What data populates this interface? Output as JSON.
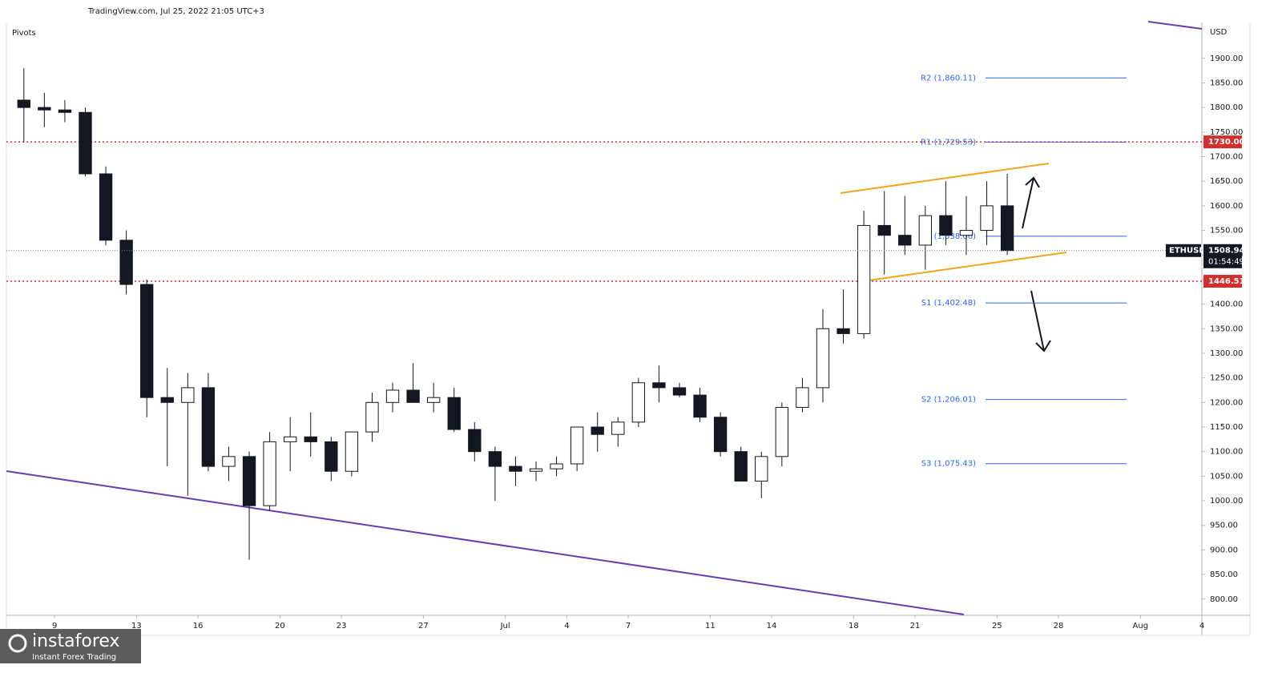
{
  "chart_data": {
    "type": "candlestick",
    "header": "TradingView.com, Jul 25, 2022 21:05 UTC+3",
    "indicator": "Pivots",
    "currency": "USD",
    "symbol": "ETHUSD",
    "countdown": "01:54:49",
    "last_price": 1508.94,
    "x": [
      "06-07",
      "06-08",
      "06-09",
      "06-10",
      "06-11",
      "06-12",
      "06-13",
      "06-14",
      "06-15",
      "06-16",
      "06-17",
      "06-18",
      "06-19",
      "06-20",
      "06-21",
      "06-22",
      "06-23",
      "06-24",
      "06-25",
      "06-26",
      "06-27",
      "06-28",
      "06-29",
      "06-30",
      "07-01",
      "07-02",
      "07-03",
      "07-04",
      "07-05",
      "07-06",
      "07-07",
      "07-08",
      "07-09",
      "07-10",
      "07-11",
      "07-12",
      "07-13",
      "07-14",
      "07-15",
      "07-16",
      "07-17",
      "07-18",
      "07-19",
      "07-20",
      "07-21",
      "07-22",
      "07-23",
      "07-24",
      "07-25"
    ],
    "open": [
      1815,
      1800,
      1795,
      1790,
      1665,
      1530,
      1440,
      1210,
      1200,
      1230,
      1070,
      1090,
      990,
      1120,
      1130,
      1120,
      1060,
      1140,
      1200,
      1225,
      1200,
      1210,
      1145,
      1100,
      1070,
      1060,
      1065,
      1075,
      1150,
      1135,
      1160,
      1240,
      1230,
      1215,
      1170,
      1100,
      1040,
      1090,
      1190,
      1230,
      1350,
      1340,
      1560,
      1540,
      1520,
      1580,
      1540,
      1550,
      1600
    ],
    "high": [
      1880,
      1830,
      1815,
      1800,
      1680,
      1550,
      1450,
      1270,
      1260,
      1260,
      1110,
      1100,
      1140,
      1170,
      1180,
      1130,
      1140,
      1220,
      1240,
      1280,
      1240,
      1230,
      1160,
      1110,
      1090,
      1080,
      1090,
      1150,
      1180,
      1170,
      1250,
      1275,
      1240,
      1230,
      1180,
      1110,
      1100,
      1200,
      1250,
      1390,
      1430,
      1590,
      1630,
      1620,
      1600,
      1650,
      1620,
      1650,
      1665
    ],
    "low": [
      1730,
      1760,
      1770,
      1660,
      1520,
      1420,
      1170,
      1070,
      1010,
      1060,
      1040,
      880,
      980,
      1060,
      1090,
      1040,
      1050,
      1120,
      1180,
      1200,
      1180,
      1140,
      1080,
      1000,
      1030,
      1040,
      1050,
      1060,
      1100,
      1110,
      1150,
      1200,
      1210,
      1160,
      1090,
      1040,
      1005,
      1070,
      1180,
      1200,
      1320,
      1330,
      1460,
      1500,
      1470,
      1520,
      1500,
      1520,
      1500
    ],
    "close": [
      1800,
      1795,
      1790,
      1665,
      1530,
      1440,
      1210,
      1200,
      1230,
      1070,
      1090,
      990,
      1120,
      1130,
      1120,
      1060,
      1140,
      1200,
      1225,
      1200,
      1210,
      1145,
      1100,
      1070,
      1060,
      1065,
      1075,
      1150,
      1135,
      1160,
      1240,
      1230,
      1215,
      1170,
      1100,
      1040,
      1090,
      1190,
      1230,
      1350,
      1340,
      1560,
      1540,
      1520,
      1580,
      1540,
      1550,
      1600,
      1509
    ],
    "up_color": "#ffffff",
    "down_color": "#131722",
    "xlim": [
      "06-07",
      "08-04"
    ],
    "xticks": [
      {
        "value": "06-09",
        "label": "9"
      },
      {
        "value": "06-13",
        "label": "13"
      },
      {
        "value": "06-16",
        "label": "16"
      },
      {
        "value": "06-20",
        "label": "20"
      },
      {
        "value": "06-23",
        "label": "23"
      },
      {
        "value": "06-27",
        "label": "27"
      },
      {
        "value": "07-01",
        "label": "Jul"
      },
      {
        "value": "07-04",
        "label": "4"
      },
      {
        "value": "07-07",
        "label": "7"
      },
      {
        "value": "07-11",
        "label": "11"
      },
      {
        "value": "07-14",
        "label": "14"
      },
      {
        "value": "07-18",
        "label": "18"
      },
      {
        "value": "07-21",
        "label": "21"
      },
      {
        "value": "07-25",
        "label": "25"
      },
      {
        "value": "07-28",
        "label": "28"
      },
      {
        "value": "08-01",
        "label": "Aug"
      },
      {
        "value": "08-04",
        "label": "4"
      }
    ],
    "ylim": [
      767,
      1973
    ],
    "yticks": [
      {
        "value": 800,
        "label": "800.00"
      },
      {
        "value": 850,
        "label": "850.00"
      },
      {
        "value": 900,
        "label": "900.00"
      },
      {
        "value": 950,
        "label": "950.00"
      },
      {
        "value": 1000,
        "label": "1000.00"
      },
      {
        "value": 1050,
        "label": "1050.00"
      },
      {
        "value": 1100,
        "label": "1100.00"
      },
      {
        "value": 1150,
        "label": "1150.00"
      },
      {
        "value": 1200,
        "label": "1200.00"
      },
      {
        "value": 1250,
        "label": "1250.00"
      },
      {
        "value": 1300,
        "label": "1300.00"
      },
      {
        "value": 1350,
        "label": "1350.00"
      },
      {
        "value": 1400,
        "label": "1400.00"
      },
      {
        "value": 1450,
        "label": "1450.00"
      },
      {
        "value": 1500,
        "label": "1500.00"
      },
      {
        "value": 1550,
        "label": "1550.00"
      },
      {
        "value": 1600,
        "label": "1600.00"
      },
      {
        "value": 1650,
        "label": "1650.00"
      },
      {
        "value": 1700,
        "label": "1700.00"
      },
      {
        "value": 1750,
        "label": "1750.00"
      },
      {
        "value": 1800,
        "label": "1800.00"
      },
      {
        "value": 1850,
        "label": "1850.00"
      },
      {
        "value": 1900,
        "label": "1900.00"
      }
    ],
    "grid": false,
    "pivots": [
      {
        "value": 1860.11,
        "label": "R2 (1,860.11)"
      },
      {
        "value": 1729.53,
        "label": "R1 (1,729.53)"
      },
      {
        "value": 1538.06,
        "label": "P (1,538.06)"
      },
      {
        "value": 1402.48,
        "label": "S1 (1,402.48)"
      },
      {
        "value": 1206.01,
        "label": "S2 (1,206.01)"
      },
      {
        "value": 1075.43,
        "label": "S3 (1,075.43)"
      }
    ],
    "pivot_color": "#2962ff",
    "levels": [
      {
        "value": 1730,
        "label": "1730.00"
      },
      1446.51
    ],
    "level_color": "#d32f2f"
  },
  "watermark": {
    "brand": "instaforex",
    "tagline": "Instant Forex Trading"
  }
}
